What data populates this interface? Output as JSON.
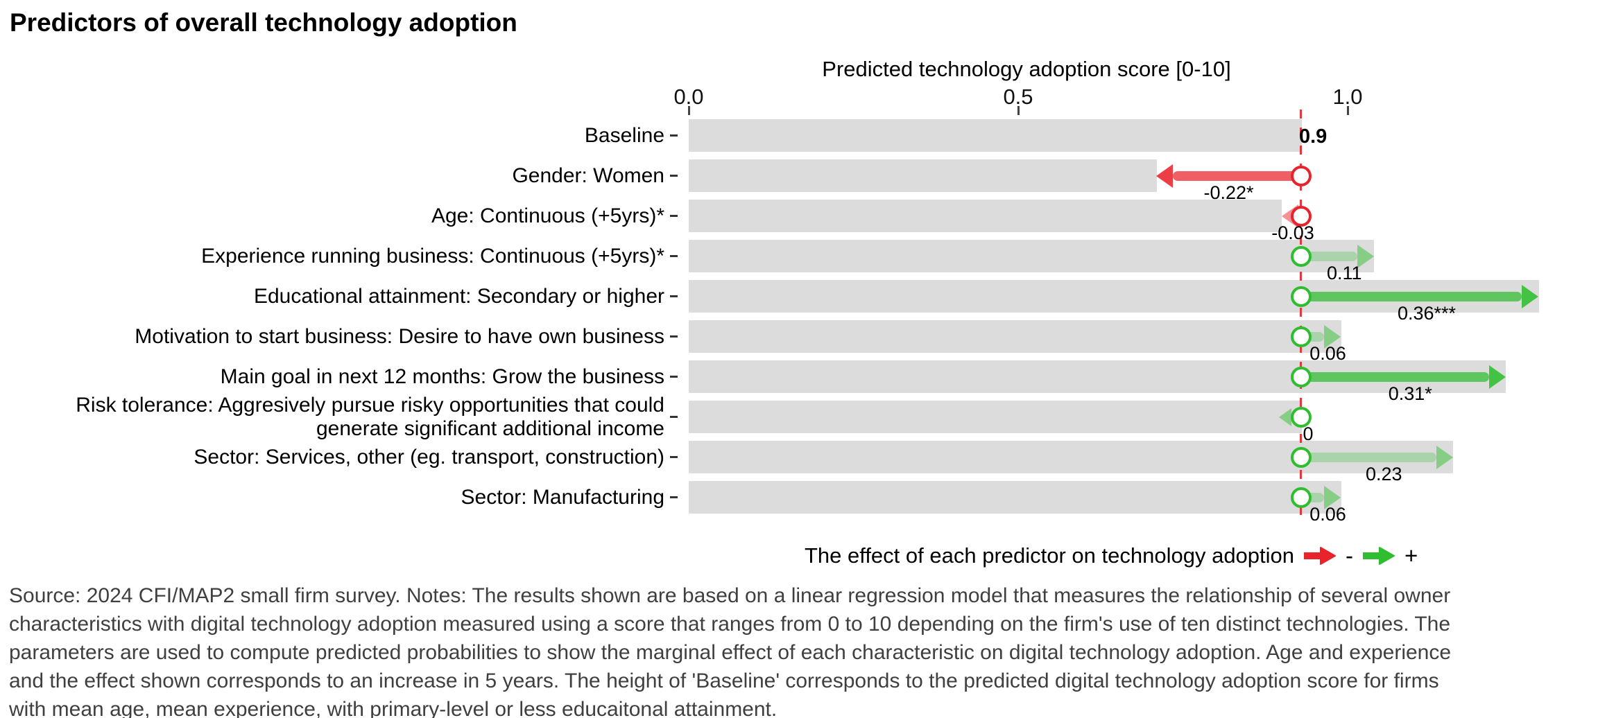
{
  "chart_data": {
    "type": "bar",
    "title": "Predictors of overall technology adoption",
    "xlabel": "Predicted technology adoption score [0-10]",
    "x_ticks": [
      0.0,
      0.5,
      1.0
    ],
    "x_tick_labels": [
      "0.0",
      "0.5",
      "1.0"
    ],
    "xlim": [
      0.0,
      1.38
    ],
    "baseline_value_label": "0.9",
    "rows": [
      {
        "label_lines": [
          "Baseline"
        ],
        "kind": "baseline",
        "effect": 0,
        "value_label": "0.9"
      },
      {
        "label_lines": [
          "Gender: Women"
        ],
        "kind": "effect",
        "effect": -0.22,
        "value_label": "-0.22*",
        "significant": true
      },
      {
        "label_lines": [
          "Age: Continuous (+5yrs)*"
        ],
        "kind": "effect",
        "effect": -0.03,
        "value_label": "-0.03",
        "significant": false
      },
      {
        "label_lines": [
          "Experience running business: Continuous (+5yrs)*"
        ],
        "kind": "effect",
        "effect": 0.11,
        "value_label": "0.11",
        "significant": false
      },
      {
        "label_lines": [
          "Educational attainment: Secondary or higher"
        ],
        "kind": "effect",
        "effect": 0.36,
        "value_label": "0.36***",
        "significant": true
      },
      {
        "label_lines": [
          "Motivation to start business: Desire to have own business"
        ],
        "kind": "effect",
        "effect": 0.06,
        "value_label": "0.06",
        "significant": false
      },
      {
        "label_lines": [
          "Main goal in next 12 months: Grow the business"
        ],
        "kind": "effect",
        "effect": 0.31,
        "value_label": "0.31*",
        "significant": true
      },
      {
        "label_lines": [
          "Risk tolerance: Aggresively pursue risky opportunities that could",
          "generate significant additional income"
        ],
        "kind": "effect",
        "effect": 0,
        "value_label": "0",
        "significant": false
      },
      {
        "label_lines": [
          "Sector: Services, other (eg. transport, construction)"
        ],
        "kind": "effect",
        "effect": 0.23,
        "value_label": "0.23",
        "significant": false
      },
      {
        "label_lines": [
          "Sector: Manufacturing"
        ],
        "kind": "effect",
        "effect": 0.06,
        "value_label": "0.06",
        "significant": false
      }
    ],
    "colors": {
      "bar": "#DCDCDC",
      "negative": "#E8232B",
      "positive": "#2FBE2F",
      "reference_line": "#E2393F"
    }
  },
  "legend": {
    "text": "The effect of each predictor on technology adoption",
    "negative_symbol": "-",
    "positive_symbol": "+"
  },
  "footer": {
    "lines": [
      "Source: 2024 CFI/MAP2 small firm survey. Notes: The results shown are based on a linear regression model that measures the relationship of several owner",
      "characteristics with digital technology adoption measured using a score that ranges from 0 to 10 depending on the firm's use of ten distinct technologies. The",
      "parameters are used to compute predicted probabilities to show the marginal effect of each characteristic on digital technology adoption. Age and experience",
      "and the effect shown corresponds to an increase in 5 years. The height of 'Baseline' corresponds to the predicted digital technology adoption score for firms",
      "with mean age, mean experience, with primary-level or less educaitonal attainment."
    ]
  }
}
